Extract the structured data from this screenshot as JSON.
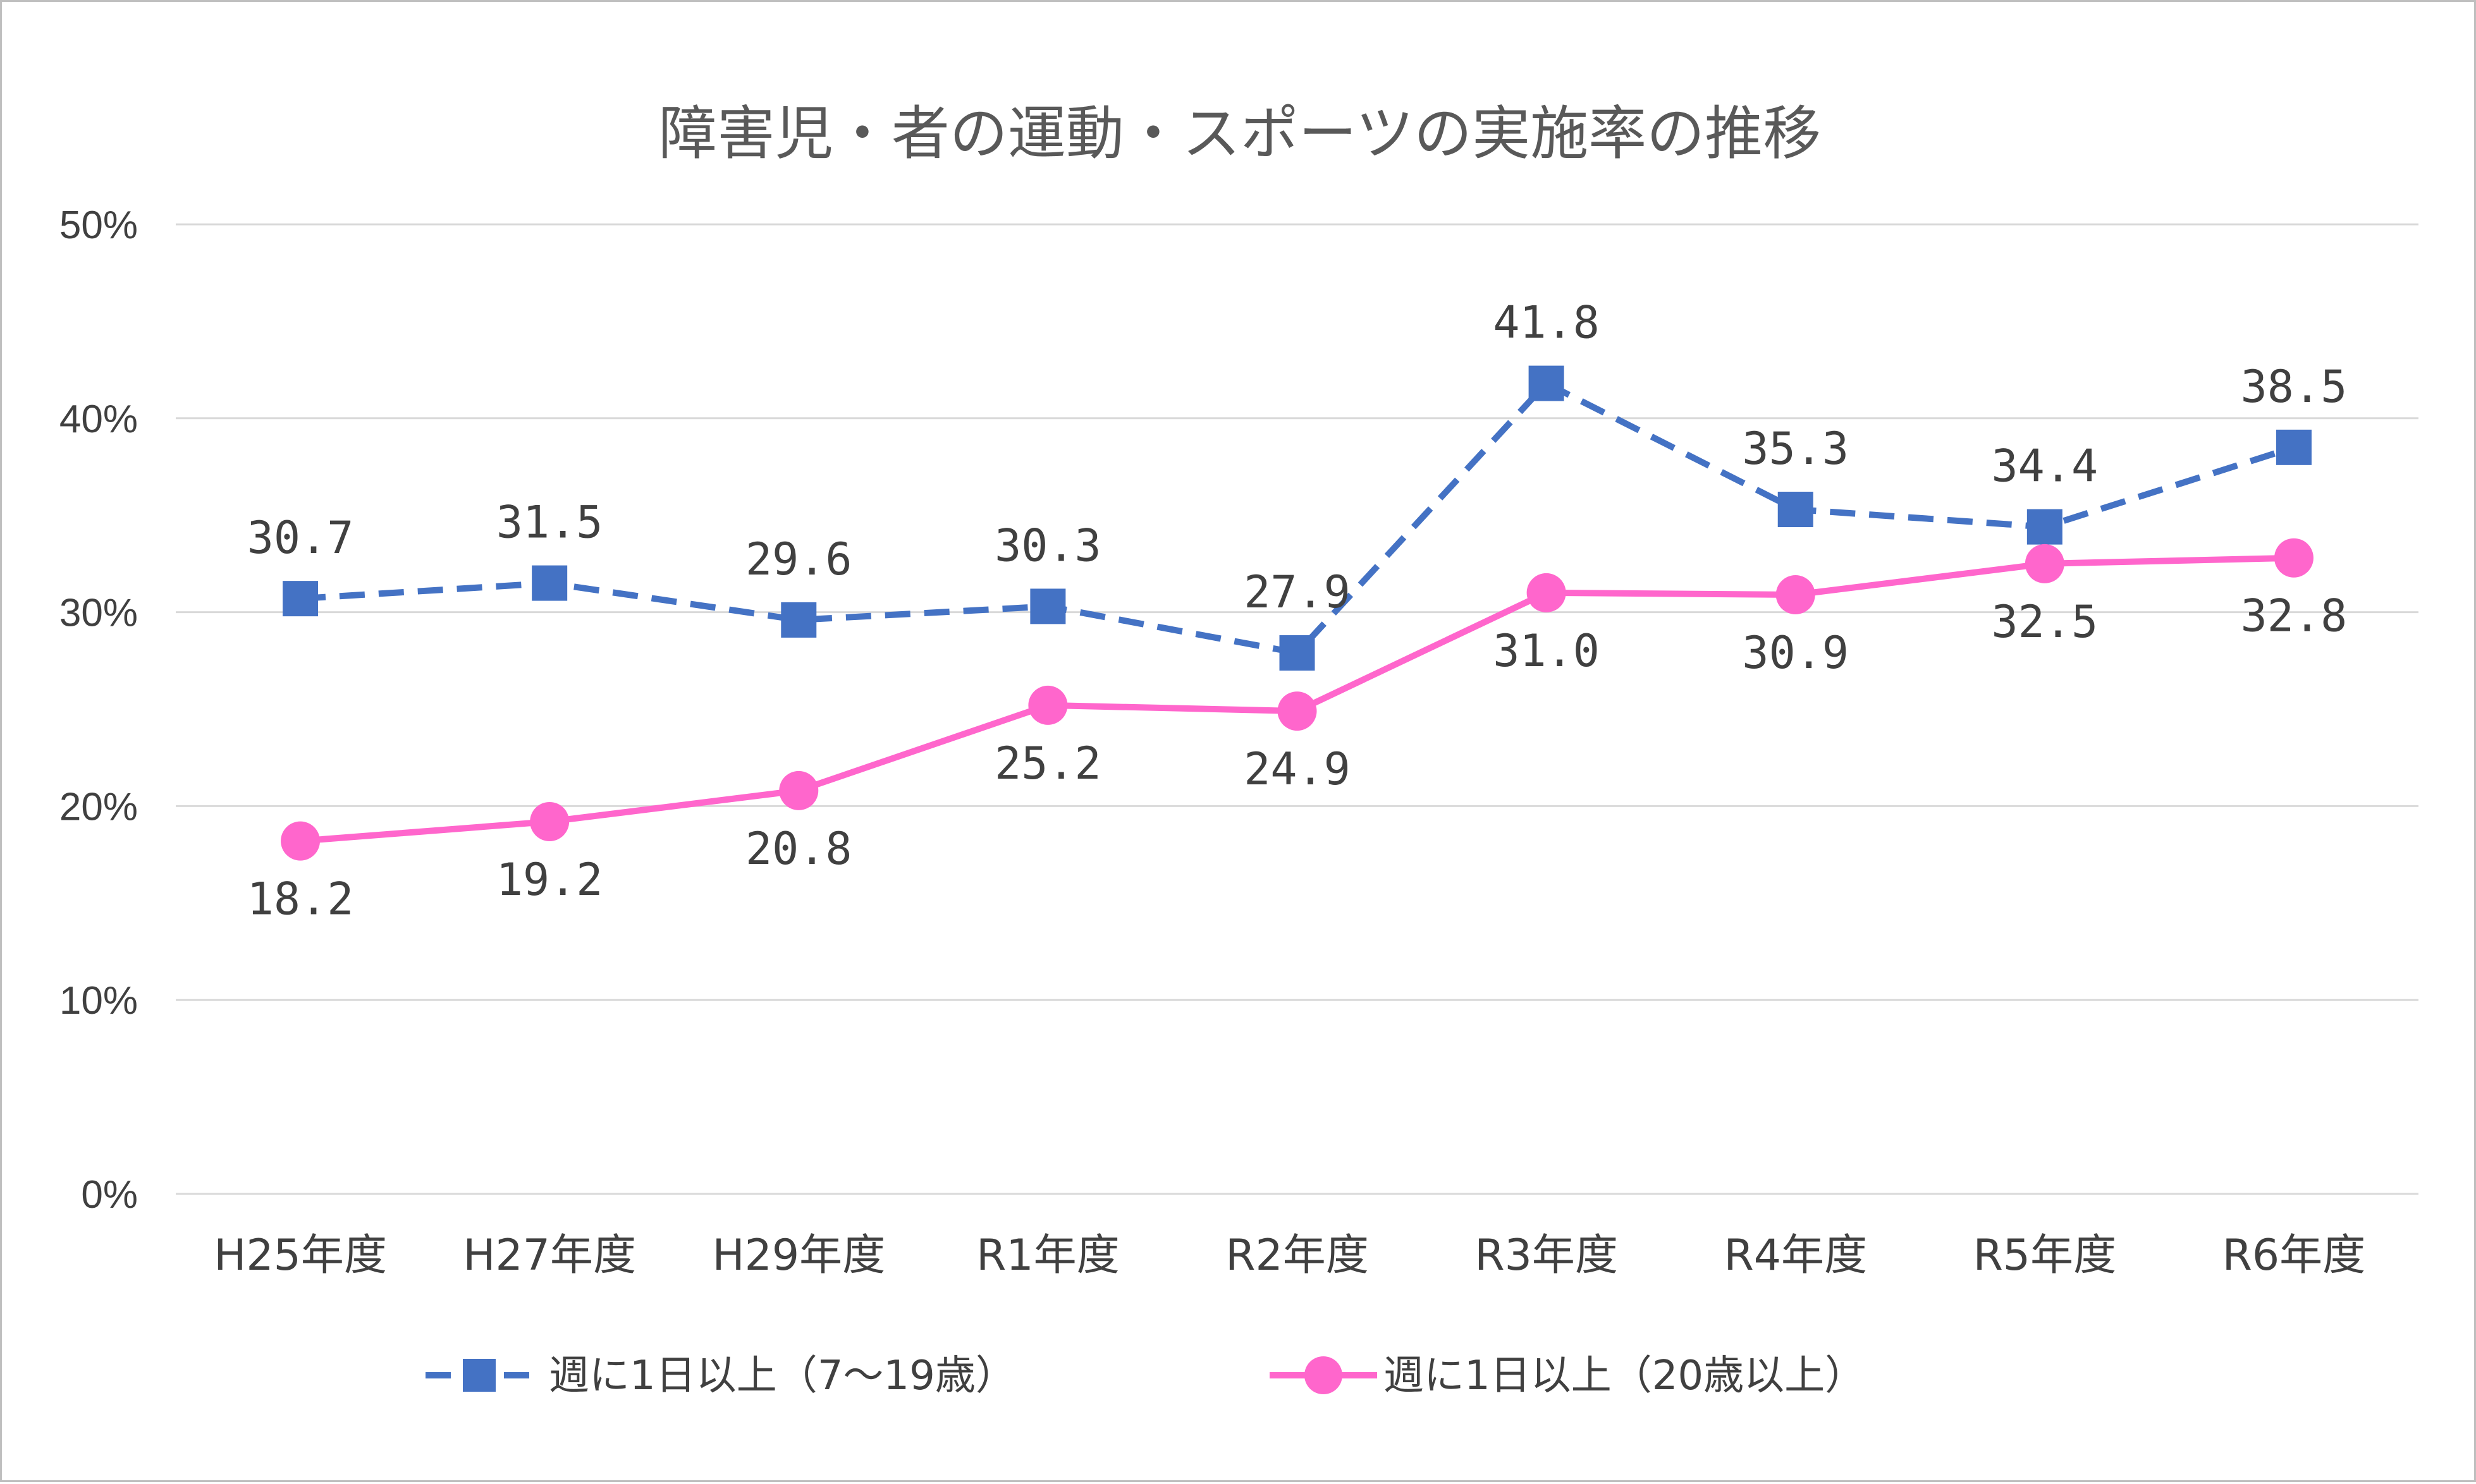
{
  "chart_data": {
    "type": "line",
    "title": "障害児・者の運動・スポーツの実施率の推移",
    "categories": [
      "H25年度",
      "H27年度",
      "H29年度",
      "R1年度",
      "R2年度",
      "R3年度",
      "R4年度",
      "R5年度",
      "R6年度"
    ],
    "y_ticks": [
      "0%",
      "10%",
      "20%",
      "30%",
      "40%",
      "50%"
    ],
    "ylim": [
      0,
      50
    ],
    "grid": true,
    "legend_position": "bottom",
    "series": [
      {
        "name": "週に1日以上（7～19歳）",
        "values": [
          30.7,
          31.5,
          29.6,
          30.3,
          27.9,
          41.8,
          35.3,
          34.4,
          38.5
        ],
        "labels": [
          "30.7",
          "31.5",
          "29.6",
          "30.3",
          "27.9",
          "41.8",
          "35.3",
          "34.4",
          "38.5"
        ],
        "color": "#4472c4",
        "marker": "square",
        "line_style": "dashed",
        "label_position": "above"
      },
      {
        "name": "週に1日以上（20歳以上）",
        "values": [
          18.2,
          19.2,
          20.8,
          25.2,
          24.9,
          31.0,
          30.9,
          32.5,
          32.8
        ],
        "labels": [
          "18.2",
          "19.2",
          "20.8",
          "25.2",
          "24.9",
          "31.0",
          "30.9",
          "32.5",
          "32.8"
        ],
        "color": "#ff66cc",
        "marker": "circle",
        "line_style": "solid",
        "label_position": "below"
      }
    ]
  }
}
